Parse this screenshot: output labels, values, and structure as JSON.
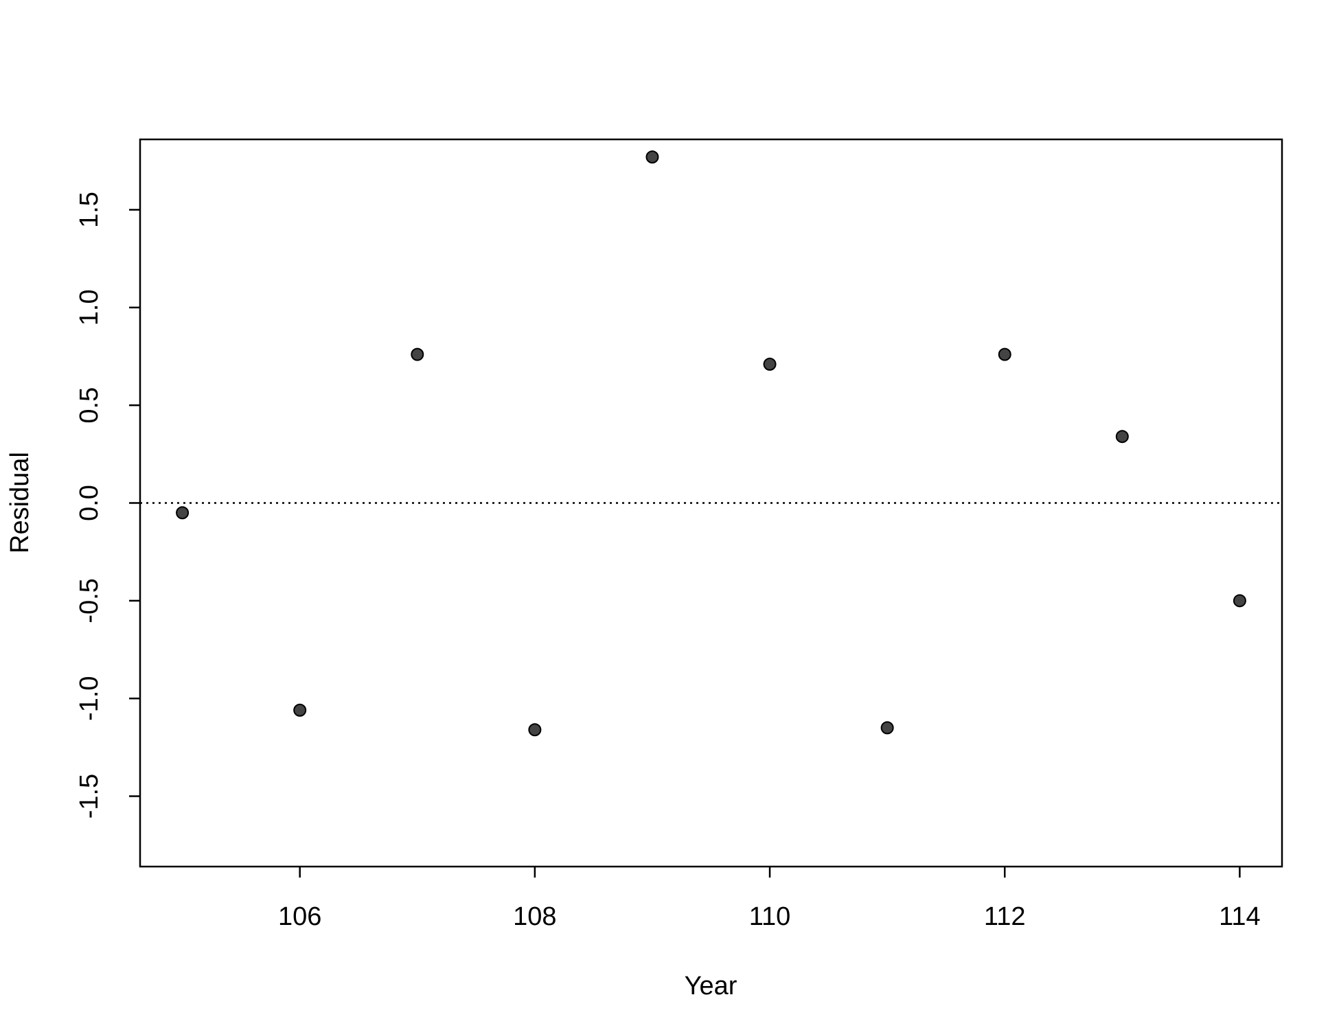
{
  "chart_data": {
    "type": "scatter",
    "xlabel": "Year",
    "ylabel": "Residual",
    "x": [
      105,
      106,
      107,
      108,
      109,
      110,
      111,
      112,
      113,
      114
    ],
    "values": [
      -0.05,
      -1.06,
      0.76,
      -1.16,
      1.77,
      0.71,
      -1.15,
      0.76,
      0.34,
      -0.5
    ],
    "color": "#444444",
    "xlim": [
      104.64,
      114.36
    ],
    "ylim": [
      -1.86,
      1.86
    ],
    "xticks": [
      106,
      108,
      110,
      112,
      114
    ],
    "yticks": [
      -1.5,
      {
        "value": -1,
        "label": "-1.0"
      },
      -0.5,
      {
        "value": 0,
        "label": "0.0"
      },
      0.5,
      {
        "value": 1,
        "label": "1.0"
      },
      1.5
    ],
    "reference_line": 0
  }
}
